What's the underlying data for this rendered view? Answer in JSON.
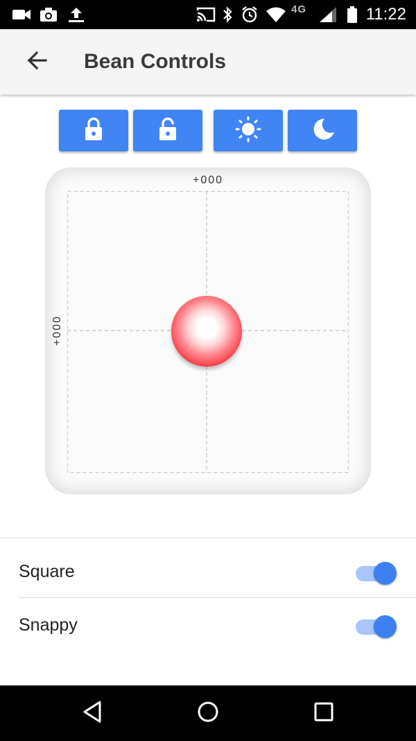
{
  "status_bar": {
    "time": "11:22",
    "network": "4G",
    "icons": [
      "video-camera-icon",
      "camera-icon",
      "upload-icon",
      "cast-icon",
      "bluetooth-icon",
      "alarm-icon",
      "wifi-icon",
      "signal-icon",
      "battery-icon"
    ]
  },
  "app_bar": {
    "title": "Bean Controls",
    "back_icon": "arrow-back-icon"
  },
  "actions": [
    {
      "icon": "lock-closed-icon"
    },
    {
      "icon": "lock-open-icon"
    },
    {
      "icon": "sun-icon"
    },
    {
      "icon": "moon-icon"
    }
  ],
  "joystick": {
    "x_readout": "+000",
    "y_readout": "+000"
  },
  "settings": [
    {
      "label": "Square",
      "enabled": true
    },
    {
      "label": "Snappy",
      "enabled": true
    }
  ],
  "nav_bar": {
    "icons": [
      "nav-back-icon",
      "nav-home-icon",
      "nav-recents-icon"
    ]
  },
  "colors": {
    "accent": "#4185f4",
    "toggle_thumb": "#3d80f0",
    "toggle_track": "#a9c6f8",
    "knob": "#f6434c",
    "app_bar_bg": "#f5f5f5"
  }
}
